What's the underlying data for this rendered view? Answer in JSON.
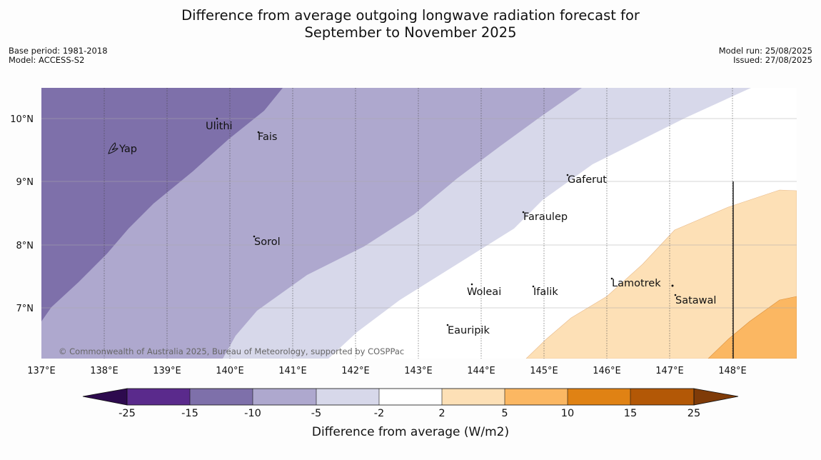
{
  "title_line1": "Difference from average outgoing longwave radiation forecast for",
  "title_line2": "September to November 2025",
  "meta_left": {
    "base_period": "Base period: 1981-2018",
    "model": "Model: ACCESS-S2"
  },
  "meta_right": {
    "model_run": "Model run: 25/08/2025",
    "issued": "Issued: 27/08/2025"
  },
  "copyright": "© Commonwealth of Australia 2025, Bureau of Meteorology, supported by COSPPac",
  "lat_labels": [
    "10°N",
    "9°N",
    "8°N",
    "7°N"
  ],
  "lon_labels": [
    "137°E",
    "138°E",
    "139°E",
    "140°E",
    "141°E",
    "142°E",
    "143°E",
    "144°E",
    "145°E",
    "146°E",
    "147°E",
    "148°E"
  ],
  "places": [
    "Yap",
    "Ulithi",
    "Fais",
    "Gaferut",
    "Faraulep",
    "Sorol",
    "Woleai",
    "Ifalik",
    "Lamotrek",
    "Satawal",
    "Eauripik"
  ],
  "colorbar": {
    "ticks": [
      "-25",
      "-15",
      "-10",
      "-5",
      "-2",
      "2",
      "5",
      "10",
      "15",
      "25"
    ],
    "colors": [
      "#2d0a4e",
      "#5a2a8c",
      "#7e70aa",
      "#aea8ce",
      "#d7d8ea",
      "#ffffff",
      "#fde0b6",
      "#fbb762",
      "#e08214",
      "#b35806",
      "#7f3b08"
    ],
    "label": "Difference from average (W/m2)"
  }
}
